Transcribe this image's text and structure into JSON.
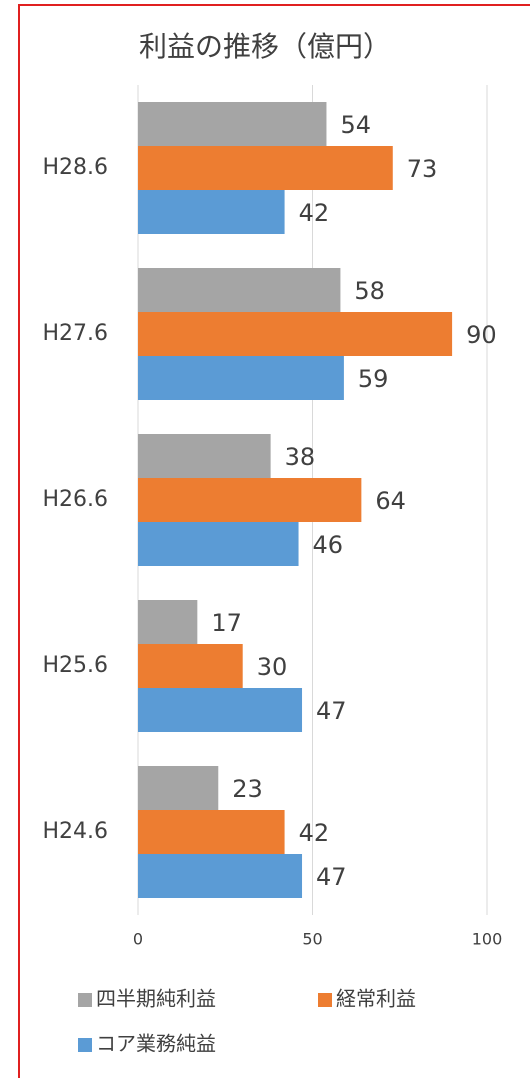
{
  "chart_data": {
    "type": "hbar",
    "title": "利益の推移（億円）",
    "categories": [
      "H28.6",
      "H27.6",
      "H26.6",
      "H25.6",
      "H24.6"
    ],
    "series": [
      {
        "name": "四半期純利益",
        "color": "#a5a5a5",
        "values": [
          54,
          58,
          38,
          17,
          23
        ]
      },
      {
        "name": "経常利益",
        "color": "#ed7d31",
        "values": [
          73,
          90,
          64,
          30,
          42
        ]
      },
      {
        "name": "コア業務純益",
        "color": "#5b9bd5",
        "values": [
          42,
          59,
          46,
          47,
          47
        ]
      }
    ],
    "xlim": [
      0,
      100
    ],
    "xticks": [
      0,
      50,
      100
    ],
    "grid": true
  }
}
